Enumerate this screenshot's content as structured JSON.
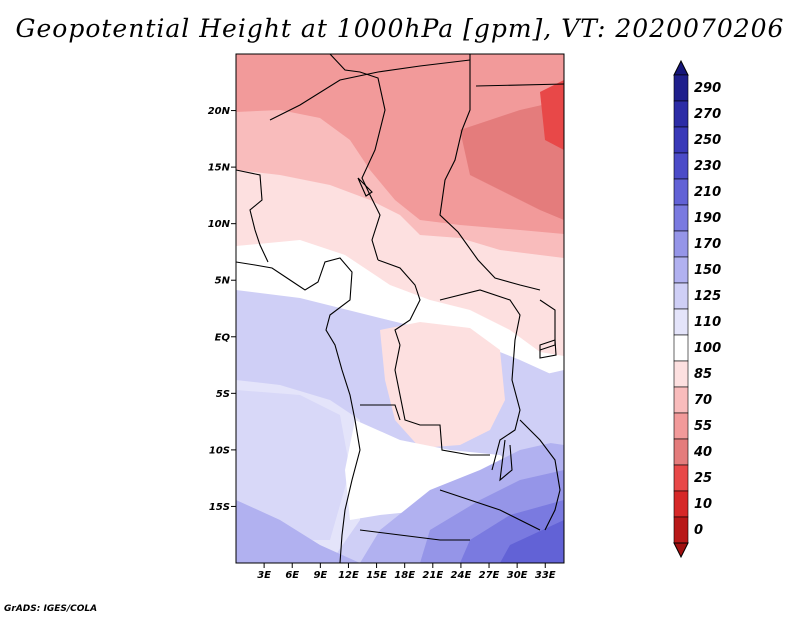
{
  "title": "Geopotential Height at 1000hPa [gpm], VT: 2020070206",
  "credit": "GrADS: IGES/COLA",
  "map": {
    "lon_range": [
      0,
      35
    ],
    "lat_range": [
      -20,
      25
    ],
    "lat_ticks": [
      {
        "lat": 20,
        "label": "20N"
      },
      {
        "lat": 15,
        "label": "15N"
      },
      {
        "lat": 10,
        "label": "10N"
      },
      {
        "lat": 5,
        "label": "5N"
      },
      {
        "lat": 0,
        "label": "EQ"
      },
      {
        "lat": -5,
        "label": "5S"
      },
      {
        "lat": -10,
        "label": "10S"
      },
      {
        "lat": -15,
        "label": "15S"
      }
    ],
    "lon_ticks": [
      {
        "lon": 3,
        "label": "3E"
      },
      {
        "lon": 6,
        "label": "6E"
      },
      {
        "lon": 9,
        "label": "9E"
      },
      {
        "lon": 12,
        "label": "12E"
      },
      {
        "lon": 15,
        "label": "15E"
      },
      {
        "lon": 18,
        "label": "18E"
      },
      {
        "lon": 21,
        "label": "21E"
      },
      {
        "lon": 24,
        "label": "24E"
      },
      {
        "lon": 27,
        "label": "27E"
      },
      {
        "lon": 30,
        "label": "30E"
      },
      {
        "lon": 33,
        "label": "33E"
      }
    ]
  },
  "colorbar": {
    "levels": [
      {
        "label": "290",
        "color": "#1f1f8c"
      },
      {
        "label": "270",
        "color": "#2c2ca6"
      },
      {
        "label": "250",
        "color": "#3939b8"
      },
      {
        "label": "230",
        "color": "#4b4bc8"
      },
      {
        "label": "210",
        "color": "#6262d6"
      },
      {
        "label": "190",
        "color": "#7a7ae0"
      },
      {
        "label": "170",
        "color": "#9595e8"
      },
      {
        "label": "150",
        "color": "#b1b1f0"
      },
      {
        "label": "125",
        "color": "#cfcff6"
      },
      {
        "label": "110",
        "color": "#e4e4fa"
      },
      {
        "label": "100",
        "color": "#ffffff"
      },
      {
        "label": "85",
        "color": "#fde0e0"
      },
      {
        "label": "70",
        "color": "#f9bcbc"
      },
      {
        "label": "55",
        "color": "#f29a9a"
      },
      {
        "label": "40",
        "color": "#e47c7c"
      },
      {
        "label": "25",
        "color": "#e84848"
      },
      {
        "label": "10",
        "color": "#d62828"
      },
      {
        "label": "0",
        "color": "#b81818"
      }
    ],
    "top_color": "#16167a",
    "bottom_color": "#a01010"
  }
}
